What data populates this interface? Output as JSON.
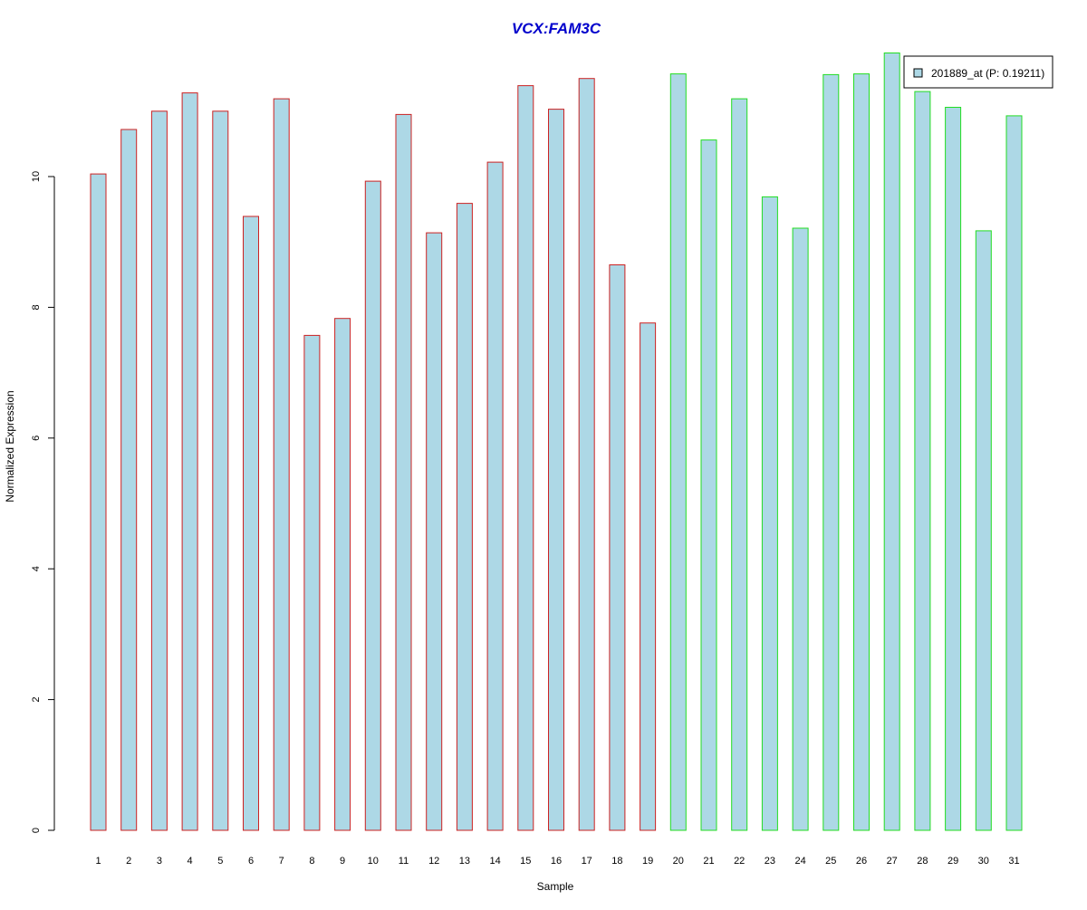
{
  "chart_data": {
    "type": "bar",
    "title": "VCX:FAM3C",
    "xlabel": "Sample",
    "ylabel": "Normalized Expression",
    "categories": [
      "1",
      "2",
      "3",
      "4",
      "5",
      "6",
      "7",
      "8",
      "9",
      "10",
      "11",
      "12",
      "13",
      "14",
      "15",
      "16",
      "17",
      "18",
      "19",
      "20",
      "21",
      "22",
      "23",
      "24",
      "25",
      "26",
      "27",
      "28",
      "29",
      "30",
      "31"
    ],
    "series": [
      {
        "name": "201889_at (P: 0.19211)",
        "values": [
          10.04,
          10.72,
          11.0,
          11.28,
          11.0,
          9.39,
          11.19,
          7.57,
          7.83,
          9.93,
          10.95,
          9.14,
          9.59,
          10.22,
          11.39,
          11.03,
          11.5,
          8.65,
          7.76,
          11.57,
          10.56,
          11.19,
          9.69,
          9.21,
          11.56,
          11.57,
          11.89,
          11.3,
          11.06,
          9.17,
          10.93
        ]
      }
    ],
    "groups": [
      {
        "from": 1,
        "to": 19,
        "border_color": "#cc2222"
      },
      {
        "from": 20,
        "to": 31,
        "border_color": "#22dd22"
      }
    ],
    "yticks": [
      0,
      2,
      4,
      6,
      8,
      10
    ],
    "ylim": [
      0,
      12
    ],
    "bar_fill_color": "#add8e6",
    "title_color": "#0000cc",
    "legend_position": "top-right",
    "grid": false
  }
}
